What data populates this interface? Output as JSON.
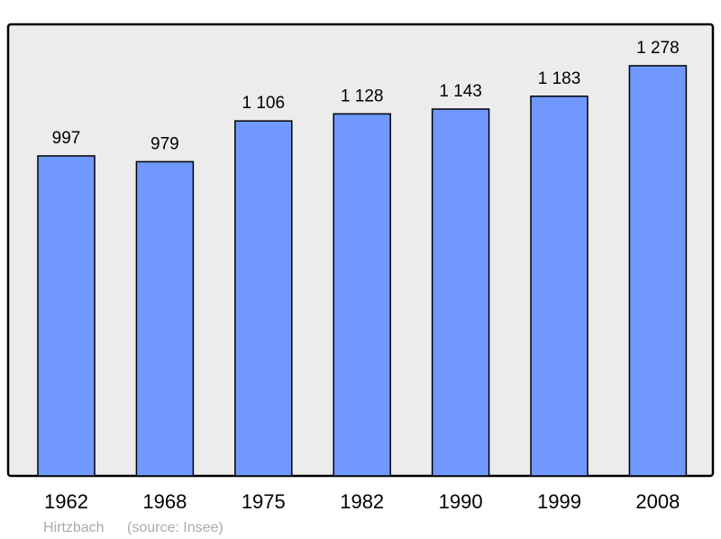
{
  "chart_data": {
    "type": "bar",
    "categories": [
      "1962",
      "1968",
      "1975",
      "1982",
      "1990",
      "1999",
      "2008"
    ],
    "values": [
      997,
      979,
      1106,
      1128,
      1143,
      1183,
      1278
    ],
    "value_labels": [
      "997",
      "979",
      "1 106",
      "1 128",
      "1 143",
      "1 183",
      "1 278"
    ],
    "ylim": [
      0,
      1407
    ],
    "grid": false,
    "colors": {
      "bar": "#7098ff",
      "background": "#ececec",
      "frame": "#000000"
    }
  },
  "footer": {
    "place": "Hirtzbach",
    "source": "(source: Insee)"
  }
}
